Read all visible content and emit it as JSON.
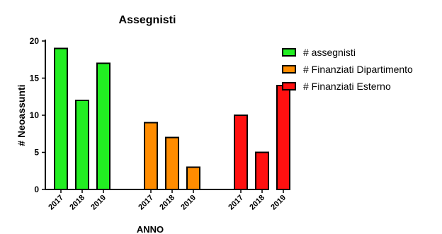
{
  "chart_data": {
    "type": "bar",
    "title": "Assegnisti",
    "xlabel": "ANNO",
    "ylabel": "# Neoassunti",
    "ylim": [
      0,
      20
    ],
    "yticks": [
      0,
      5,
      10,
      15,
      20
    ],
    "legend_position": "top-right",
    "groups": [
      {
        "series": "# assegnisti",
        "color": "#22ee22",
        "categories": [
          "2017",
          "2018",
          "2019"
        ],
        "values": [
          19,
          12,
          17
        ]
      },
      {
        "series": "# Finanziati Dipartimento",
        "color": "#ff8c00",
        "categories": [
          "2017",
          "2018",
          "2019"
        ],
        "values": [
          9,
          7,
          3
        ]
      },
      {
        "series": "# Finanziati Esterno",
        "color": "#ff1010",
        "categories": [
          "2017",
          "2018",
          "2019"
        ],
        "values": [
          10,
          5,
          14
        ]
      }
    ]
  }
}
